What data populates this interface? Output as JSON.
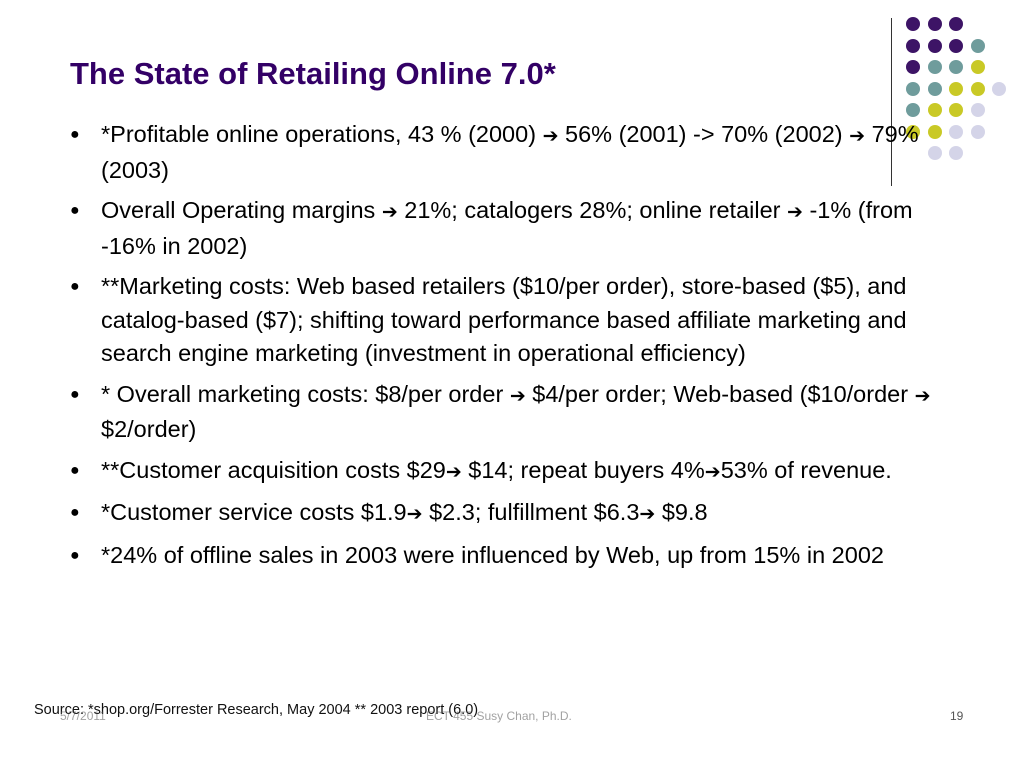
{
  "slide": {
    "title": "The State of Retailing Online 7.0*",
    "bullets": [
      {
        "segments": [
          {
            "text": "*Profitable online operations, 43 % (2000) "
          },
          {
            "arrow": true
          },
          {
            "text": " 56% (2001) -> 70% (2002) "
          },
          {
            "arrow": true
          },
          {
            "text": " 79% (2003)"
          }
        ]
      },
      {
        "segments": [
          {
            "text": "Overall Operating margins "
          },
          {
            "arrow": true
          },
          {
            "text": " 21%; catalogers 28%; online retailer "
          },
          {
            "arrow": true
          },
          {
            "text": " -1% (from -16% in 2002)"
          }
        ]
      },
      {
        "segments": [
          {
            "text": "**Marketing costs: Web based retailers ($10/per order), store-based ($5), and catalog-based ($7); shifting toward performance based affiliate marketing and search engine marketing (investment in operational efficiency)"
          }
        ]
      },
      {
        "segments": [
          {
            "text": "* Overall marketing costs: $8/per order "
          },
          {
            "arrow": true
          },
          {
            "text": " $4/per order; Web-based ($10/order "
          },
          {
            "arrow": true
          },
          {
            "text": " $2/order)"
          }
        ]
      },
      {
        "segments": [
          {
            "text": "**Customer acquisition costs $29"
          },
          {
            "arrow": true
          },
          {
            "text": " $14; repeat buyers 4%"
          },
          {
            "arrow": true
          },
          {
            "text": "53% of revenue."
          }
        ]
      },
      {
        "segments": [
          {
            "text": "*Customer service costs $1.9"
          },
          {
            "arrow": true
          },
          {
            "text": " $2.3; fulfillment $6.3"
          },
          {
            "arrow": true
          },
          {
            "text": " $9.8"
          }
        ]
      },
      {
        "segments": [
          {
            "text": "*24% of offline sales in 2003 were influenced by Web, up from 15% in 2002"
          }
        ]
      }
    ],
    "arrow_glyph": "➔",
    "bullet_glyph": "●"
  },
  "footer": {
    "date": "5/7/2011",
    "course": "ECT 455  Susy Chan, Ph.D.",
    "page_number": "19",
    "source": "Source: *shop.org/Forrester Research, May 2004   ** 2003 report (6.0)"
  },
  "theme": {
    "title_color": "#330066",
    "dot_purple": "#3d1466",
    "dot_teal": "#6f9c9c",
    "dot_yellow": "#c9c926",
    "dot_lavender": "#d4d4e8"
  },
  "decoration": {
    "dot_grid": [
      [
        "purple",
        "purple",
        "purple",
        null
      ],
      [
        "purple",
        "purple",
        "purple",
        "teal"
      ],
      [
        "purple",
        "teal",
        "teal",
        "yellow"
      ],
      [
        "teal",
        "teal",
        "yellow",
        "yellow",
        "lavender"
      ],
      [
        "teal",
        "yellow",
        "yellow",
        "lavender"
      ],
      [
        "yellow",
        "yellow",
        "lavender",
        "lavender"
      ],
      [
        null,
        "lavender",
        "lavender",
        null
      ]
    ]
  }
}
